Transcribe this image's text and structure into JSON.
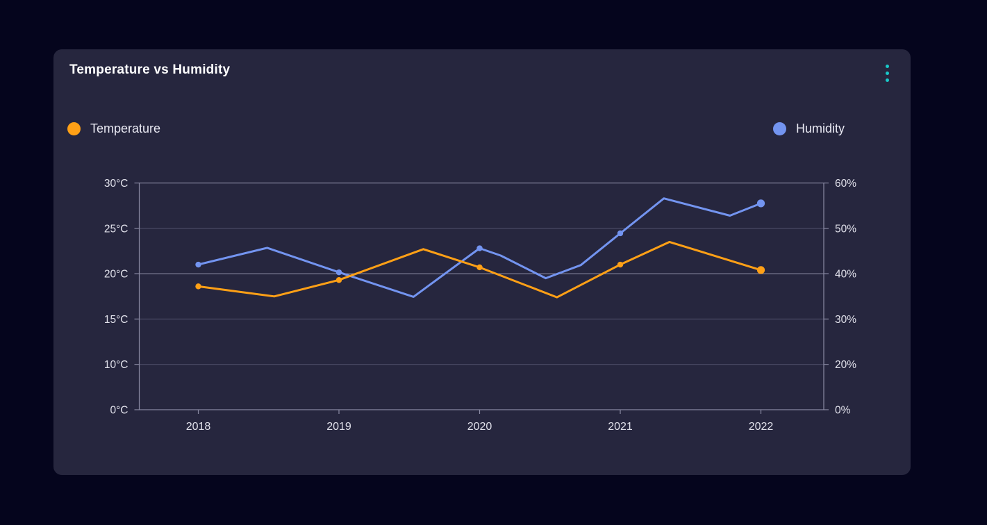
{
  "page": {
    "background": "#05051d"
  },
  "card": {
    "title": "Temperature vs Humidity",
    "background": "#26263e",
    "menu_icon_color": "#19c8c9"
  },
  "legend": {
    "temperature": {
      "label": "Temperature",
      "color": "#ffa016"
    },
    "humidity": {
      "label": "Humidity",
      "color": "#7394f0"
    }
  },
  "chart_data": {
    "type": "line",
    "title": "Temperature vs Humidity",
    "grid": "horizontal",
    "legend_position": "top",
    "x_ticks": [
      "2018",
      "2019",
      "2020",
      "2021",
      "2022"
    ],
    "x_range": [
      2018,
      2022
    ],
    "left_axis": {
      "name": "Temperature",
      "unit": "°C",
      "tick_labels": [
        "30°C",
        "25°C",
        "20°C",
        "15°C",
        "10°C",
        "0°C"
      ],
      "tick_values": [
        30,
        25,
        20,
        15,
        10,
        0
      ],
      "note": "ticks evenly spaced top to bottom"
    },
    "right_axis": {
      "name": "Humidity",
      "unit": "%",
      "tick_labels": [
        "60%",
        "50%",
        "40%",
        "30%",
        "20%",
        "0%"
      ],
      "tick_values": [
        60,
        50,
        40,
        30,
        20,
        0
      ]
    },
    "series": [
      {
        "name": "Humidity",
        "axis": "right",
        "color": "#7394f0",
        "points": [
          {
            "x": 2018.0,
            "y": 42.0
          },
          {
            "x": 2018.49,
            "y": 45.7
          },
          {
            "x": 2019.0,
            "y": 40.3
          },
          {
            "x": 2019.53,
            "y": 34.9
          },
          {
            "x": 2020.0,
            "y": 45.6
          },
          {
            "x": 2020.15,
            "y": 44.0
          },
          {
            "x": 2020.47,
            "y": 39.0
          },
          {
            "x": 2020.72,
            "y": 41.9
          },
          {
            "x": 2021.0,
            "y": 48.9
          },
          {
            "x": 2021.31,
            "y": 56.6
          },
          {
            "x": 2021.78,
            "y": 52.8
          },
          {
            "x": 2022.0,
            "y": 55.5
          }
        ],
        "marker_years": [
          2018,
          2019,
          2020,
          2021,
          2022
        ],
        "marker_values_at_years": [
          42.0,
          40.3,
          45.6,
          48.9,
          55.5
        ]
      },
      {
        "name": "Temperature",
        "axis": "left",
        "color": "#ffa016",
        "points": [
          {
            "x": 2018.0,
            "y": 18.6
          },
          {
            "x": 2018.54,
            "y": 17.5
          },
          {
            "x": 2019.0,
            "y": 19.3
          },
          {
            "x": 2019.6,
            "y": 22.7
          },
          {
            "x": 2020.0,
            "y": 20.7
          },
          {
            "x": 2020.55,
            "y": 17.4
          },
          {
            "x": 2021.0,
            "y": 21.0
          },
          {
            "x": 2021.35,
            "y": 23.5
          },
          {
            "x": 2022.0,
            "y": 20.4
          }
        ],
        "marker_years": [
          2018,
          2019,
          2020,
          2021,
          2022
        ],
        "marker_values_at_years": [
          18.6,
          19.3,
          20.7,
          21.0,
          20.4
        ]
      }
    ],
    "colors": {
      "plot_border": "#8b8ba4",
      "gridline": "#53536f",
      "gridline_bright": "#9090a8",
      "axis_text": "#e0e0ea"
    }
  }
}
